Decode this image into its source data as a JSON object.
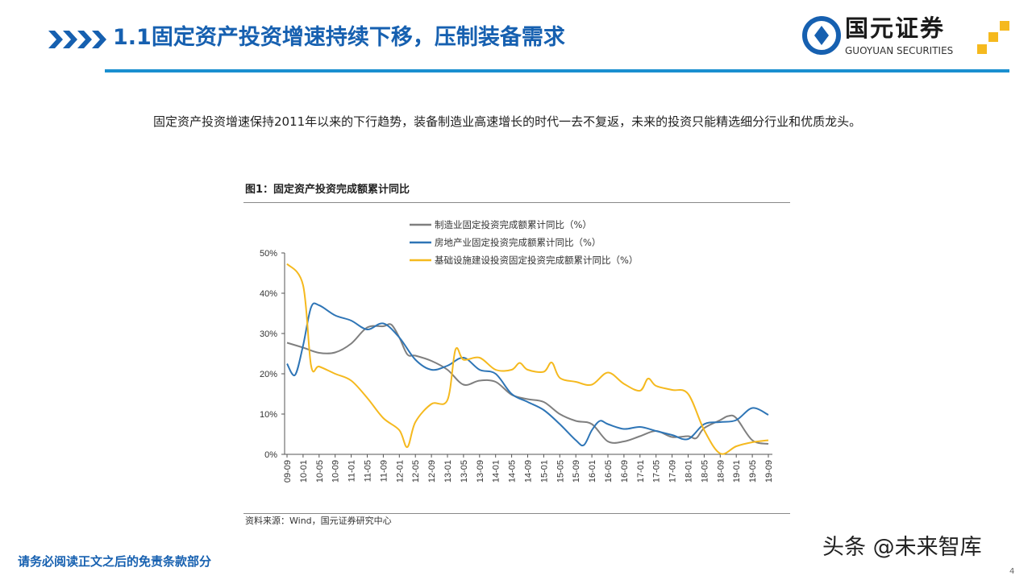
{
  "header": {
    "title": "1.1固定资产投资增速持续下移，压制装备需求",
    "logo_cn": "国元证券",
    "logo_en": "GUOYUAN SECURITIES"
  },
  "colors": {
    "brand_blue": "#1660b0",
    "rule_blue": "#1a8fd0",
    "accent_gold": "#f5b91e"
  },
  "body": {
    "paragraph": "固定资产投资增速保持2011年以来的下行趋势，装备制造业高速增长的时代一去不复返，未来的投资只能精选细分行业和优质龙头。"
  },
  "figure": {
    "title": "图1：固定资产投资完成额累计同比",
    "source": "资料来源：Wind，国元证券研究中心"
  },
  "footer": {
    "disclaimer": "请务必阅读正文之后的免责条款部分",
    "watermark": "头条 @未来智库",
    "page": "4"
  },
  "chart_data": {
    "type": "line",
    "ylim": [
      0,
      50
    ],
    "yticks": [
      "0%",
      "10%",
      "20%",
      "30%",
      "40%",
      "50%"
    ],
    "xticks": [
      "09-09",
      "10-01",
      "10-05",
      "10-09",
      "11-01",
      "11-05",
      "11-09",
      "12-01",
      "12-05",
      "12-09",
      "13-01",
      "13-05",
      "13-09",
      "14-01",
      "14-05",
      "14-09",
      "15-01",
      "15-05",
      "15-09",
      "16-01",
      "16-05",
      "16-09",
      "17-01",
      "17-05",
      "17-09",
      "18-01",
      "18-05",
      "18-09",
      "19-01",
      "19-05",
      "19-09"
    ],
    "grid": false,
    "legend": "top",
    "series": [
      {
        "name": "制造业固定投资完成额累计同比（%）",
        "color": "#7f7f7f",
        "points": [
          [
            "09-09",
            27.7
          ],
          [
            "10-01",
            26.5
          ],
          [
            "10-05",
            25.2
          ],
          [
            "10-09",
            25.3
          ],
          [
            "11-01",
            27.5
          ],
          [
            "11-05",
            31.5
          ],
          [
            "11-09",
            31.8
          ],
          [
            "11-11",
            32.2
          ],
          [
            "12-01",
            29
          ],
          [
            "12-03",
            24.8
          ],
          [
            "12-05",
            24.5
          ],
          [
            "12-09",
            23.2
          ],
          [
            "13-01",
            21
          ],
          [
            "13-05",
            17.3
          ],
          [
            "13-09",
            18.3
          ],
          [
            "14-01",
            18
          ],
          [
            "14-05",
            14.8
          ],
          [
            "14-09",
            13.7
          ],
          [
            "15-01",
            13
          ],
          [
            "15-05",
            10
          ],
          [
            "15-09",
            8.3
          ],
          [
            "16-01",
            7.5
          ],
          [
            "16-05",
            3.2
          ],
          [
            "16-09",
            3.2
          ],
          [
            "17-01",
            4.5
          ],
          [
            "17-05",
            5.8
          ],
          [
            "17-09",
            4.3
          ],
          [
            "18-01",
            4.5
          ],
          [
            "18-03",
            4
          ],
          [
            "18-05",
            6.5
          ],
          [
            "18-09",
            8.5
          ],
          [
            "18-11",
            9.5
          ],
          [
            "19-01",
            9
          ],
          [
            "19-05",
            3.5
          ],
          [
            "19-09",
            2.6
          ]
        ]
      },
      {
        "name": "房地产业固定投资完成额累计同比（%）",
        "color": "#2e75b6",
        "points": [
          [
            "09-09",
            22.5
          ],
          [
            "09-11",
            19.7
          ],
          [
            "10-01",
            27
          ],
          [
            "10-03",
            36.5
          ],
          [
            "10-05",
            37
          ],
          [
            "10-09",
            34.5
          ],
          [
            "11-01",
            33.2
          ],
          [
            "11-05",
            31
          ],
          [
            "11-09",
            32.5
          ],
          [
            "12-01",
            29
          ],
          [
            "12-05",
            23.5
          ],
          [
            "12-09",
            21
          ],
          [
            "13-01",
            22
          ],
          [
            "13-05",
            24
          ],
          [
            "13-09",
            21
          ],
          [
            "14-01",
            20
          ],
          [
            "14-05",
            15
          ],
          [
            "14-09",
            13
          ],
          [
            "15-01",
            11
          ],
          [
            "15-05",
            7.5
          ],
          [
            "15-09",
            3.5
          ],
          [
            "15-11",
            2.3
          ],
          [
            "16-01",
            6
          ],
          [
            "16-03",
            8.3
          ],
          [
            "16-05",
            7.5
          ],
          [
            "16-09",
            6.3
          ],
          [
            "17-01",
            6.8
          ],
          [
            "17-05",
            5.8
          ],
          [
            "17-09",
            4.8
          ],
          [
            "18-01",
            3.8
          ],
          [
            "18-05",
            7.5
          ],
          [
            "18-09",
            8
          ],
          [
            "19-01",
            8.5
          ],
          [
            "19-05",
            11.5
          ],
          [
            "19-09",
            9.8
          ]
        ]
      },
      {
        "name": "基础设施建设投资固定投资完成额累计同比（%）",
        "color": "#f5b91e",
        "points": [
          [
            "09-09",
            47.3
          ],
          [
            "10-01",
            42
          ],
          [
            "10-03",
            22
          ],
          [
            "10-05",
            21.8
          ],
          [
            "10-09",
            20
          ],
          [
            "11-01",
            18.3
          ],
          [
            "11-05",
            14
          ],
          [
            "11-09",
            9
          ],
          [
            "12-01",
            6
          ],
          [
            "12-03",
            1.8
          ],
          [
            "12-05",
            8
          ],
          [
            "12-09",
            12.5
          ],
          [
            "13-01",
            13.5
          ],
          [
            "13-03",
            26
          ],
          [
            "13-05",
            23.5
          ],
          [
            "13-09",
            24
          ],
          [
            "14-01",
            21
          ],
          [
            "14-05",
            21
          ],
          [
            "14-07",
            22.7
          ],
          [
            "14-09",
            21
          ],
          [
            "15-01",
            20.5
          ],
          [
            "15-03",
            22.8
          ],
          [
            "15-05",
            19
          ],
          [
            "15-09",
            18
          ],
          [
            "16-01",
            17.3
          ],
          [
            "16-05",
            20.3
          ],
          [
            "16-09",
            17.5
          ],
          [
            "17-01",
            15.8
          ],
          [
            "17-03",
            18.8
          ],
          [
            "17-05",
            17
          ],
          [
            "17-09",
            16
          ],
          [
            "18-01",
            15
          ],
          [
            "18-05",
            6
          ],
          [
            "18-09",
            0.2
          ],
          [
            "19-01",
            2
          ],
          [
            "19-05",
            3
          ],
          [
            "19-09",
            3.5
          ]
        ]
      }
    ]
  }
}
